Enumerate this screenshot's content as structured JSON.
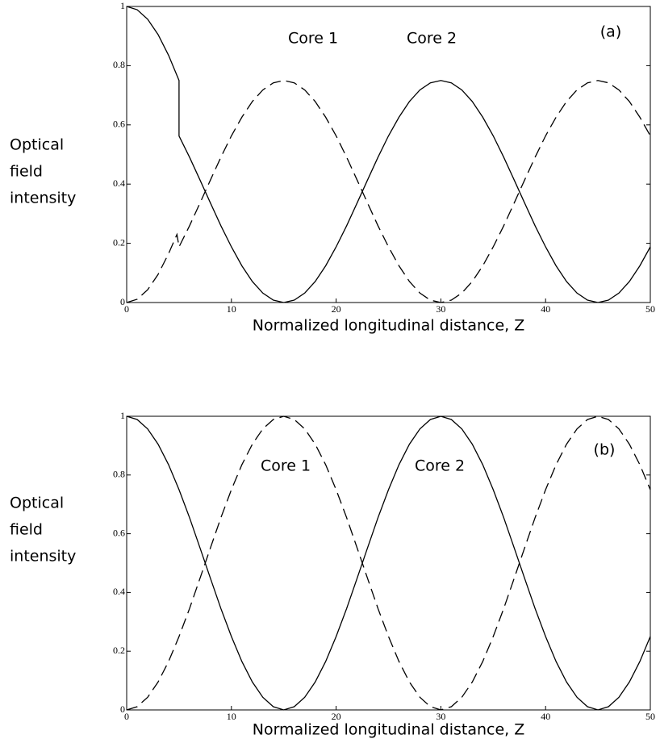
{
  "chart_data": [
    {
      "type": "line",
      "panel_label": "(a)",
      "xlabel": "Normalized longitudinal distance, Z",
      "ylabel": [
        "Optical",
        "field",
        "intensity"
      ],
      "annotations": [
        "Core 1",
        "Core 2"
      ],
      "xlim": [
        0,
        50
      ],
      "xticks": [
        0,
        10,
        20,
        30,
        40,
        50
      ],
      "ylim": [
        0,
        1
      ],
      "yticks": [
        0,
        0.2,
        0.4,
        0.6,
        0.8,
        1
      ],
      "series": [
        {
          "color": "#000000",
          "style": "solid",
          "x": [
            0,
            1,
            2,
            3,
            4,
            5,
            5,
            6,
            7,
            8,
            9,
            10,
            11,
            12,
            13,
            14,
            15,
            16,
            17,
            18,
            19,
            20,
            21,
            22,
            23,
            24,
            25,
            26,
            27,
            28,
            29,
            30,
            31,
            32,
            33,
            34,
            35,
            36,
            37,
            38,
            39,
            40,
            41,
            42,
            43,
            44,
            45,
            46,
            47,
            48,
            49,
            50
          ],
          "values": [
            1,
            0.989,
            0.957,
            0.905,
            0.835,
            0.75,
            0.5625,
            0.491,
            0.414,
            0.336,
            0.259,
            0.188,
            0.124,
            0.071,
            0.032,
            0.008,
            0,
            0.008,
            0.032,
            0.071,
            0.124,
            0.188,
            0.259,
            0.336,
            0.414,
            0.491,
            0.563,
            0.626,
            0.679,
            0.718,
            0.742,
            0.75,
            0.742,
            0.718,
            0.679,
            0.626,
            0.563,
            0.491,
            0.414,
            0.336,
            0.259,
            0.188,
            0.124,
            0.071,
            0.032,
            0.008,
            0,
            0.008,
            0.032,
            0.071,
            0.124,
            0.188
          ]
        },
        {
          "color": "#000000",
          "style": "dashed",
          "x": [
            0,
            1,
            2,
            3,
            4,
            4.8,
            5,
            6,
            7,
            8,
            9,
            10,
            11,
            12,
            13,
            14,
            15,
            16,
            17,
            18,
            19,
            20,
            21,
            22,
            23,
            24,
            25,
            26,
            27,
            28,
            29,
            30,
            31,
            32,
            33,
            34,
            35,
            36,
            37,
            38,
            39,
            40,
            41,
            42,
            43,
            44,
            45,
            46,
            47,
            48,
            49,
            50
          ],
          "values": [
            0,
            0.011,
            0.043,
            0.095,
            0.165,
            0.23,
            0.188,
            0.259,
            0.336,
            0.414,
            0.491,
            0.563,
            0.626,
            0.679,
            0.718,
            0.742,
            0.75,
            0.742,
            0.718,
            0.679,
            0.626,
            0.563,
            0.491,
            0.414,
            0.336,
            0.259,
            0.188,
            0.124,
            0.071,
            0.032,
            0.008,
            0,
            0.008,
            0.032,
            0.071,
            0.124,
            0.188,
            0.259,
            0.336,
            0.414,
            0.491,
            0.563,
            0.626,
            0.679,
            0.718,
            0.742,
            0.75,
            0.742,
            0.718,
            0.679,
            0.626,
            0.563
          ]
        }
      ]
    },
    {
      "type": "line",
      "panel_label": "(b)",
      "xlabel": "Normalized longitudinal distance, Z",
      "ylabel": [
        "Optical",
        "field",
        "intensity"
      ],
      "annotations": [
        "Core 1",
        "Core 2"
      ],
      "xlim": [
        0,
        50
      ],
      "xticks": [
        0,
        10,
        20,
        30,
        40,
        50
      ],
      "ylim": [
        0,
        1
      ],
      "yticks": [
        0,
        0.2,
        0.4,
        0.6,
        0.8,
        1
      ],
      "series": [
        {
          "color": "#000000",
          "style": "solid",
          "x": [
            0,
            1,
            2,
            3,
            4,
            5,
            6,
            7,
            8,
            9,
            10,
            11,
            12,
            13,
            14,
            15,
            16,
            17,
            18,
            19,
            20,
            21,
            22,
            23,
            24,
            25,
            26,
            27,
            28,
            29,
            30,
            31,
            32,
            33,
            34,
            35,
            36,
            37,
            38,
            39,
            40,
            41,
            42,
            43,
            44,
            45,
            46,
            47,
            48,
            49,
            50
          ],
          "values": [
            1,
            0.989,
            0.957,
            0.905,
            0.835,
            0.75,
            0.655,
            0.552,
            0.448,
            0.345,
            0.25,
            0.165,
            0.095,
            0.043,
            0.011,
            0,
            0.011,
            0.043,
            0.095,
            0.165,
            0.25,
            0.345,
            0.448,
            0.552,
            0.655,
            0.75,
            0.835,
            0.905,
            0.957,
            0.989,
            1,
            0.989,
            0.957,
            0.905,
            0.835,
            0.75,
            0.655,
            0.552,
            0.448,
            0.345,
            0.25,
            0.165,
            0.095,
            0.043,
            0.011,
            0,
            0.011,
            0.043,
            0.095,
            0.165,
            0.25
          ]
        },
        {
          "color": "#000000",
          "style": "dashed",
          "x": [
            0,
            1,
            2,
            3,
            4,
            5,
            6,
            7,
            8,
            9,
            10,
            11,
            12,
            13,
            14,
            15,
            16,
            17,
            18,
            19,
            20,
            21,
            22,
            23,
            24,
            25,
            26,
            27,
            28,
            29,
            30,
            31,
            32,
            33,
            34,
            35,
            36,
            37,
            38,
            39,
            40,
            41,
            42,
            43,
            44,
            45,
            46,
            47,
            48,
            49,
            50
          ],
          "values": [
            0,
            0.011,
            0.043,
            0.095,
            0.165,
            0.25,
            0.345,
            0.448,
            0.552,
            0.655,
            0.75,
            0.835,
            0.905,
            0.957,
            0.989,
            1,
            0.989,
            0.957,
            0.905,
            0.835,
            0.75,
            0.655,
            0.552,
            0.448,
            0.345,
            0.25,
            0.165,
            0.095,
            0.043,
            0.011,
            0,
            0.011,
            0.043,
            0.095,
            0.165,
            0.25,
            0.345,
            0.448,
            0.552,
            0.655,
            0.75,
            0.835,
            0.905,
            0.957,
            0.989,
            1,
            0.989,
            0.957,
            0.905,
            0.835,
            0.75
          ]
        }
      ]
    }
  ]
}
